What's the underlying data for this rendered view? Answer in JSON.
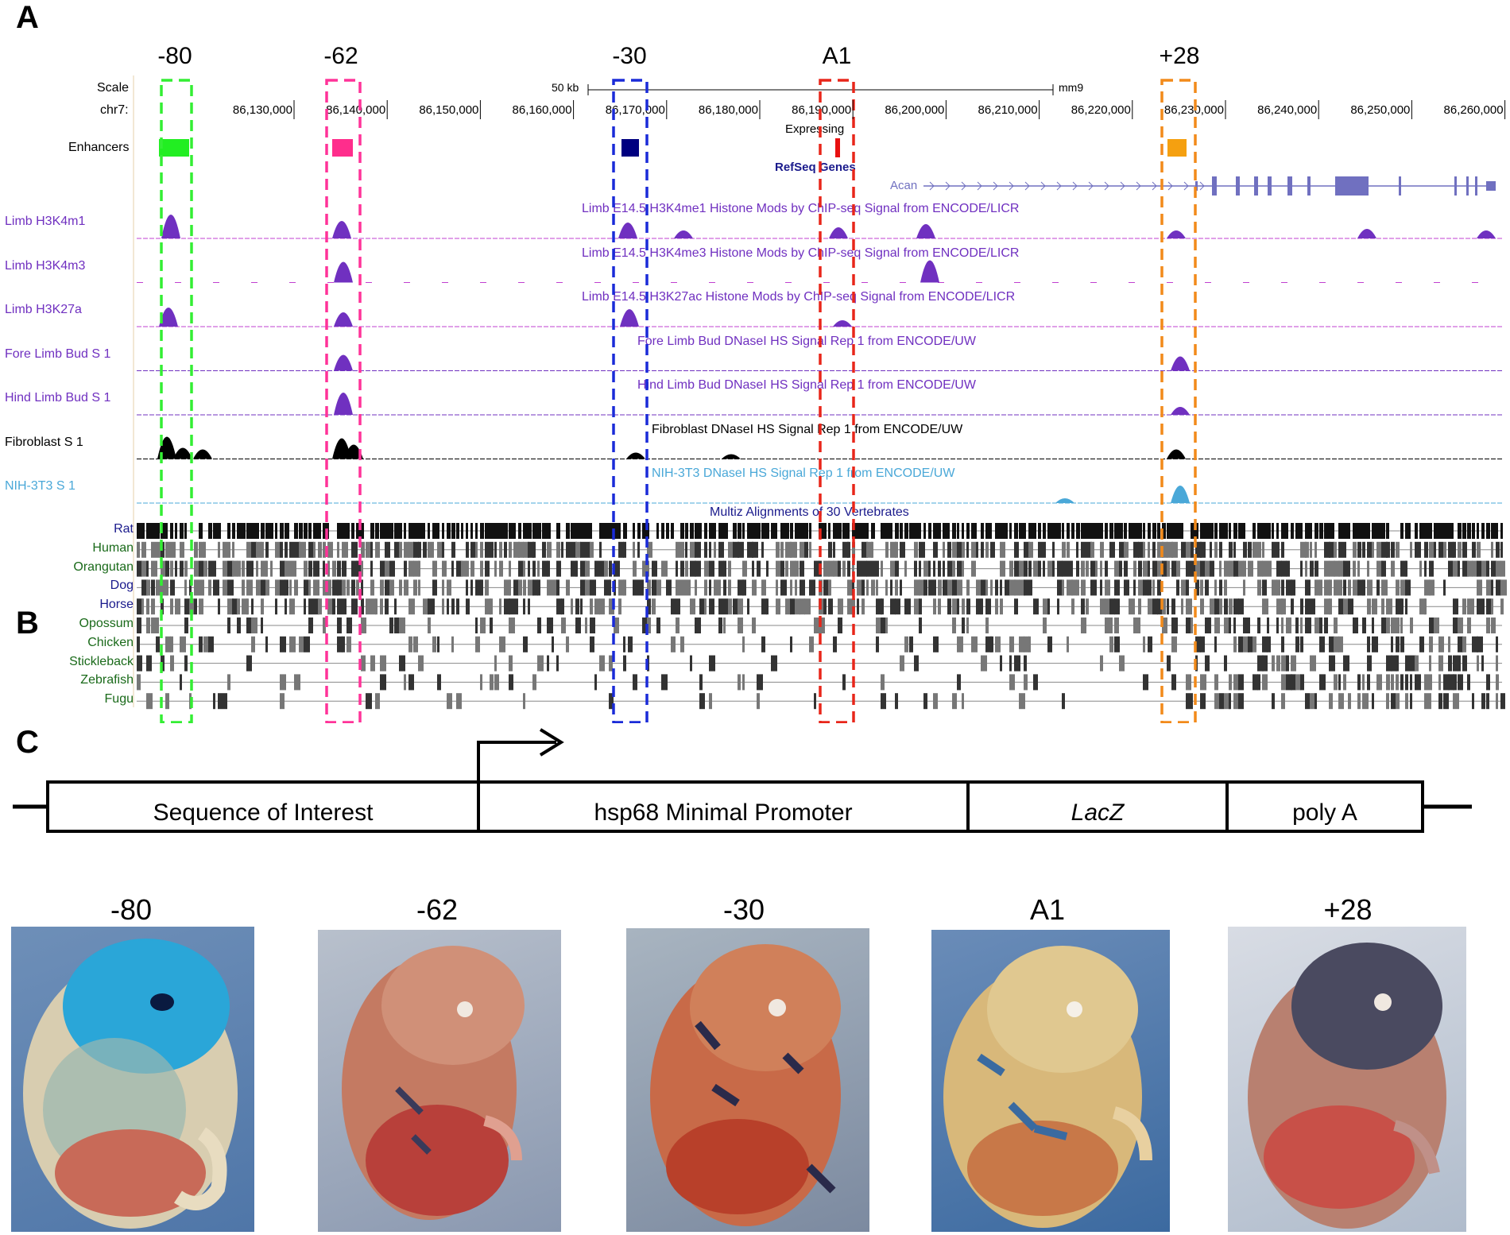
{
  "panels": {
    "a": "A",
    "b": "B",
    "c": "C"
  },
  "enhancer_labels": [
    "-80",
    "-62",
    "-30",
    "A1",
    "+28"
  ],
  "browser": {
    "scale_label": "Scale",
    "scale_bar": "50 kb",
    "assembly": "mm9",
    "chrom_label": "chr7:",
    "ticks": [
      "86,130,000",
      "86,140,000",
      "86,150,000",
      "86,160,000",
      "86,170,000",
      "86,180,000",
      "86,190,000",
      "86,200,000",
      "86,210,000",
      "86,220,000",
      "86,230,000",
      "86,240,000",
      "86,250,000",
      "86,260,000"
    ],
    "expressing": "Expressing",
    "enhancers_label": "Enhancers",
    "refseq": "RefSeq Genes",
    "gene": "Acan",
    "tracks": [
      {
        "label": "Limb H3K4m1",
        "title": "Limb E14.5 H3K4me1 Histone Mods by ChIP-seq Signal from ENCODE/LICR",
        "color": "#7030c0"
      },
      {
        "label": "Limb H3K4m3",
        "title": "Limb E14.5 H3K4me3 Histone Mods by ChIP-seq Signal from ENCODE/LICR",
        "color": "#7030c0"
      },
      {
        "label": "Limb H3K27a",
        "title": "Limb E14.5 H3K27ac Histone Mods by ChIP-seq Signal from ENCODE/LICR",
        "color": "#7030c0"
      },
      {
        "label": "Fore Limb Bud S 1",
        "title": "Fore Limb Bud DNaseI HS Signal Rep 1 from ENCODE/UW",
        "color": "#7030c0"
      },
      {
        "label": "Hind Limb Bud S 1",
        "title": "Hind Limb Bud DNaseI HS Signal Rep 1 from ENCODE/UW",
        "color": "#7030c0"
      },
      {
        "label": "Fibroblast S 1",
        "title": "Fibroblast DNaseI HS Signal Rep 1 from ENCODE/UW",
        "color": "#000000"
      },
      {
        "label": "NIH-3T3 S 1",
        "title": "NIH-3T3 DNaseI HS Signal Rep 1 from ENCODE/UW",
        "color": "#4aa8d8"
      }
    ],
    "multiz_title": "Multiz Alignments of 30 Vertebrates",
    "species": [
      "Rat",
      "Human",
      "Orangutan",
      "Dog",
      "Horse",
      "Opossum",
      "Chicken",
      "Stickleback",
      "Zebrafish",
      "Fugu"
    ]
  },
  "construct": {
    "segments": [
      "Sequence of Interest",
      "hsp68 Minimal Promoter",
      "LacZ",
      "poly A"
    ]
  },
  "photos": [
    "-80",
    "-62",
    "-30",
    "A1",
    "+28"
  ],
  "colors": {
    "enh_-80": "#33ee33",
    "enh_-62": "#ff3399",
    "enh_-30": "#1a2bd8",
    "enh_A1": "#e8261a",
    "enh_+28": "#f28a1a"
  }
}
